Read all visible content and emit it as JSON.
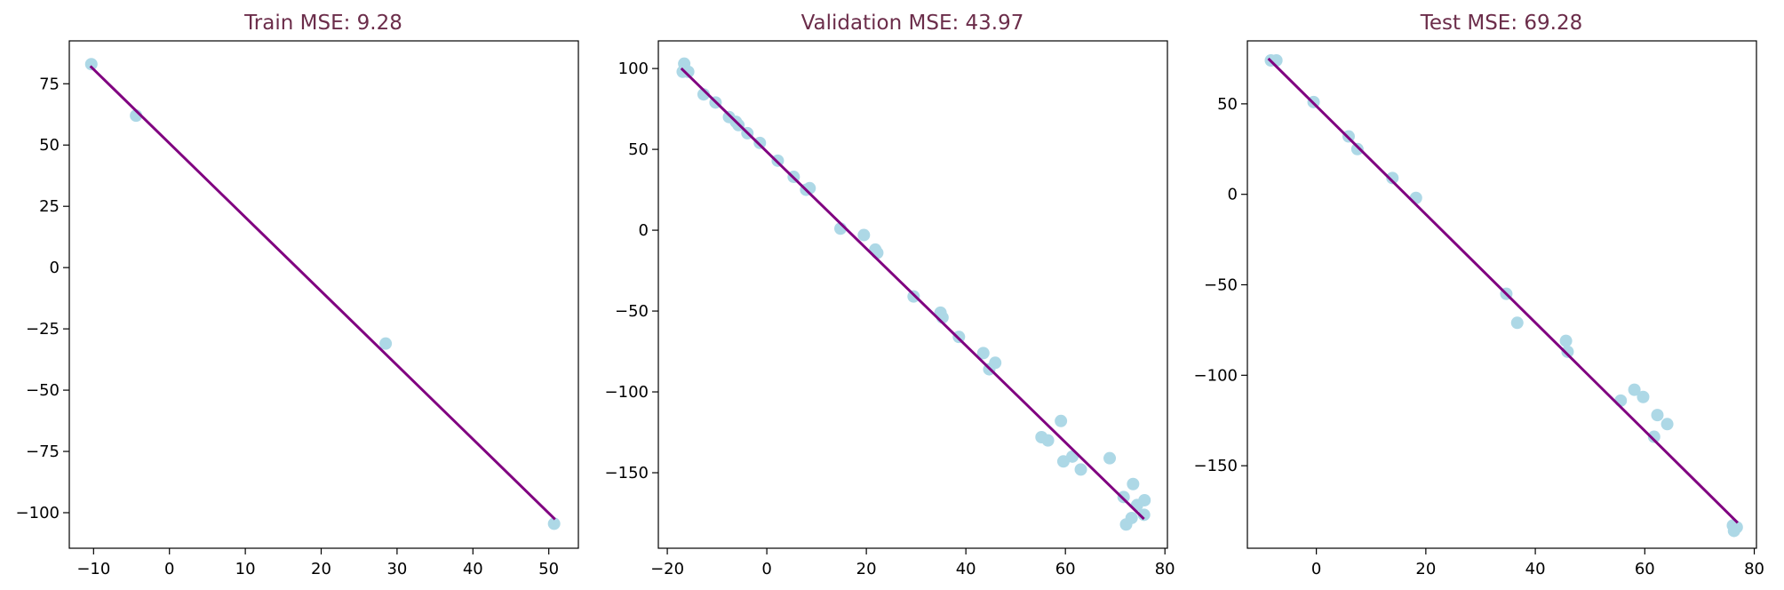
{
  "colors": {
    "scatter": "#add8e6",
    "line": "#800080",
    "title": "#6b2d4a",
    "axis": "#000000"
  },
  "chart_data": [
    {
      "type": "scatter",
      "title": "Train MSE: 9.28",
      "xlabel": "",
      "ylabel": "",
      "xlim": [
        -13.2,
        53.9
      ],
      "ylim": [
        -114.5,
        92.5
      ],
      "xticks": [
        -10,
        0,
        10,
        20,
        30,
        40,
        50
      ],
      "yticks": [
        -100,
        -75,
        -50,
        -25,
        0,
        25,
        50,
        75
      ],
      "points": [
        [
          -10.3,
          83
        ],
        [
          -4.4,
          62
        ],
        [
          28.5,
          -31
        ],
        [
          50.7,
          -104.5
        ]
      ],
      "fit_line": [
        [
          -10.3,
          81.8
        ],
        [
          50.7,
          -102.3
        ]
      ],
      "grid": false
    },
    {
      "type": "scatter",
      "title": "Validation MSE: 43.97",
      "xlabel": "",
      "ylabel": "",
      "xlim": [
        -21.8,
        80.5
      ],
      "ylim": [
        -196.7,
        117.1
      ],
      "xticks": [
        -20,
        0,
        20,
        40,
        60,
        80
      ],
      "yticks": [
        -150,
        -100,
        -50,
        0,
        50,
        100
      ],
      "points": [
        [
          -16.6,
          103
        ],
        [
          -16.9,
          98
        ],
        [
          -15.8,
          98
        ],
        [
          -12.7,
          84
        ],
        [
          -10.3,
          79
        ],
        [
          -7.6,
          70
        ],
        [
          -6.2,
          67
        ],
        [
          -5.7,
          65
        ],
        [
          -3.9,
          60
        ],
        [
          -1.4,
          54
        ],
        [
          2.2,
          43
        ],
        [
          5.4,
          33
        ],
        [
          7.9,
          25
        ],
        [
          8.6,
          26
        ],
        [
          14.8,
          1
        ],
        [
          19.5,
          -3
        ],
        [
          21.8,
          -12
        ],
        [
          22.2,
          -14
        ],
        [
          29.5,
          -41
        ],
        [
          34.9,
          -51
        ],
        [
          35.3,
          -54
        ],
        [
          38.6,
          -66
        ],
        [
          43.5,
          -76
        ],
        [
          44.7,
          -86
        ],
        [
          45.9,
          -82
        ],
        [
          55.2,
          -128
        ],
        [
          56.5,
          -130
        ],
        [
          59.1,
          -118
        ],
        [
          59.6,
          -143
        ],
        [
          61.4,
          -140
        ],
        [
          63.1,
          -148
        ],
        [
          68.9,
          -141
        ],
        [
          71.7,
          -165
        ],
        [
          72.2,
          -182
        ],
        [
          73.3,
          -178
        ],
        [
          73.6,
          -157
        ],
        [
          74.4,
          -170
        ],
        [
          75.8,
          -176
        ],
        [
          75.9,
          -167
        ]
      ],
      "fit_line": [
        [
          -17,
          99.5
        ],
        [
          75.6,
          -178
        ]
      ],
      "grid": false
    },
    {
      "type": "scatter",
      "title": "Test MSE: 69.28",
      "xlabel": "",
      "ylabel": "",
      "xlim": [
        -12.6,
        80.4
      ],
      "ylim": [
        -195.6,
        84.8
      ],
      "xticks": [
        0,
        20,
        40,
        60,
        80
      ],
      "yticks": [
        -150,
        -100,
        -50,
        0,
        50
      ],
      "points": [
        [
          -8.3,
          74
        ],
        [
          -7.3,
          74
        ],
        [
          -0.5,
          51
        ],
        [
          5.9,
          32
        ],
        [
          7.5,
          25
        ],
        [
          13.9,
          9
        ],
        [
          18.2,
          -2
        ],
        [
          34.7,
          -55
        ],
        [
          36.7,
          -71
        ],
        [
          45.6,
          -81
        ],
        [
          45.9,
          -87
        ],
        [
          55.6,
          -114
        ],
        [
          58.1,
          -108
        ],
        [
          59.7,
          -112
        ],
        [
          61.7,
          -134
        ],
        [
          62.3,
          -122
        ],
        [
          64.1,
          -127
        ],
        [
          76.1,
          -183
        ],
        [
          76.3,
          -186
        ],
        [
          76.8,
          -184
        ]
      ],
      "fit_line": [
        [
          -8.6,
          74.5
        ],
        [
          76.8,
          -181
        ]
      ],
      "grid": false
    }
  ]
}
